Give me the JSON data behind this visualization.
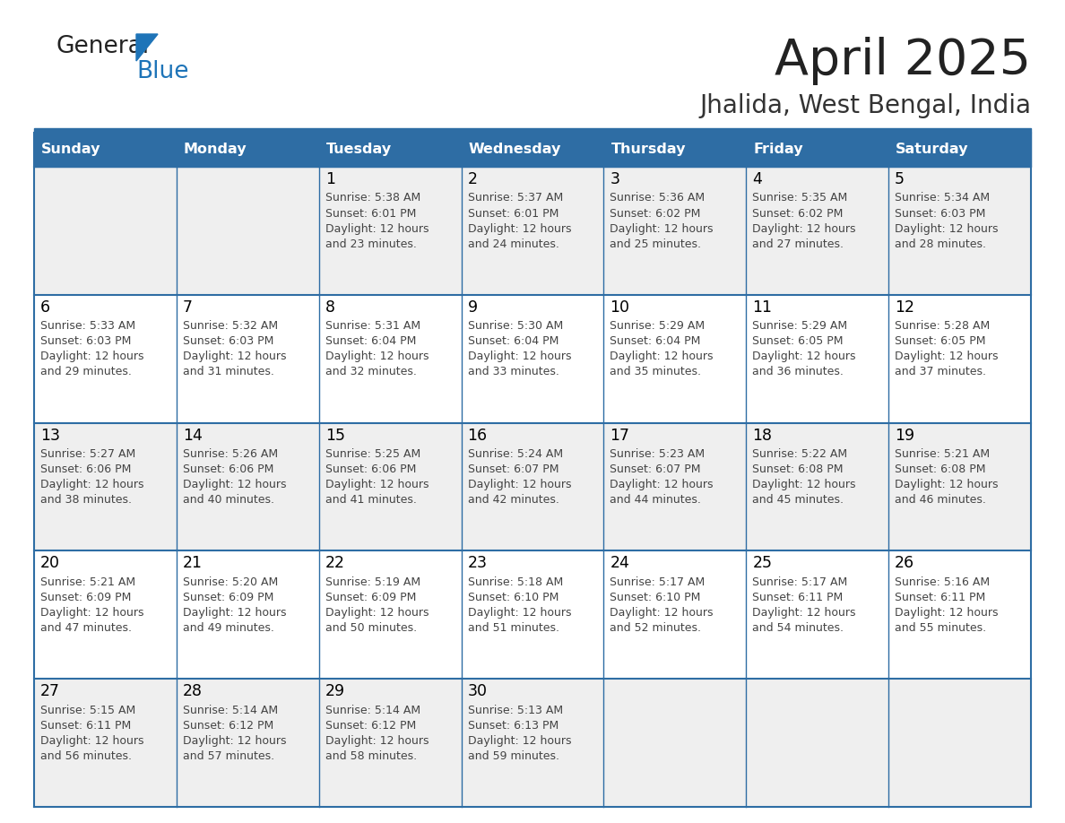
{
  "title": "April 2025",
  "subtitle": "Jhalida, West Bengal, India",
  "header_bg": "#2E6DA4",
  "header_text": "#FFFFFF",
  "row_bg_odd": "#EFEFEF",
  "row_bg_even": "#FFFFFF",
  "day_headers": [
    "Sunday",
    "Monday",
    "Tuesday",
    "Wednesday",
    "Thursday",
    "Friday",
    "Saturday"
  ],
  "title_color": "#222222",
  "subtitle_color": "#333333",
  "day_num_color": "#000000",
  "detail_color": "#444444",
  "logo_text_color": "#222222",
  "logo_blue_color": "#1E74B8",
  "separator_color": "#2E6DA4",
  "calendar": [
    [
      {
        "day": "",
        "sunrise": "",
        "sunset": "",
        "minutes": ""
      },
      {
        "day": "",
        "sunrise": "",
        "sunset": "",
        "minutes": ""
      },
      {
        "day": "1",
        "sunrise": "5:38 AM",
        "sunset": "6:01 PM",
        "minutes": "23"
      },
      {
        "day": "2",
        "sunrise": "5:37 AM",
        "sunset": "6:01 PM",
        "minutes": "24"
      },
      {
        "day": "3",
        "sunrise": "5:36 AM",
        "sunset": "6:02 PM",
        "minutes": "25"
      },
      {
        "day": "4",
        "sunrise": "5:35 AM",
        "sunset": "6:02 PM",
        "minutes": "27"
      },
      {
        "day": "5",
        "sunrise": "5:34 AM",
        "sunset": "6:03 PM",
        "minutes": "28"
      }
    ],
    [
      {
        "day": "6",
        "sunrise": "5:33 AM",
        "sunset": "6:03 PM",
        "minutes": "29"
      },
      {
        "day": "7",
        "sunrise": "5:32 AM",
        "sunset": "6:03 PM",
        "minutes": "31"
      },
      {
        "day": "8",
        "sunrise": "5:31 AM",
        "sunset": "6:04 PM",
        "minutes": "32"
      },
      {
        "day": "9",
        "sunrise": "5:30 AM",
        "sunset": "6:04 PM",
        "minutes": "33"
      },
      {
        "day": "10",
        "sunrise": "5:29 AM",
        "sunset": "6:04 PM",
        "minutes": "35"
      },
      {
        "day": "11",
        "sunrise": "5:29 AM",
        "sunset": "6:05 PM",
        "minutes": "36"
      },
      {
        "day": "12",
        "sunrise": "5:28 AM",
        "sunset": "6:05 PM",
        "minutes": "37"
      }
    ],
    [
      {
        "day": "13",
        "sunrise": "5:27 AM",
        "sunset": "6:06 PM",
        "minutes": "38"
      },
      {
        "day": "14",
        "sunrise": "5:26 AM",
        "sunset": "6:06 PM",
        "minutes": "40"
      },
      {
        "day": "15",
        "sunrise": "5:25 AM",
        "sunset": "6:06 PM",
        "minutes": "41"
      },
      {
        "day": "16",
        "sunrise": "5:24 AM",
        "sunset": "6:07 PM",
        "minutes": "42"
      },
      {
        "day": "17",
        "sunrise": "5:23 AM",
        "sunset": "6:07 PM",
        "minutes": "44"
      },
      {
        "day": "18",
        "sunrise": "5:22 AM",
        "sunset": "6:08 PM",
        "minutes": "45"
      },
      {
        "day": "19",
        "sunrise": "5:21 AM",
        "sunset": "6:08 PM",
        "minutes": "46"
      }
    ],
    [
      {
        "day": "20",
        "sunrise": "5:21 AM",
        "sunset": "6:09 PM",
        "minutes": "47"
      },
      {
        "day": "21",
        "sunrise": "5:20 AM",
        "sunset": "6:09 PM",
        "minutes": "49"
      },
      {
        "day": "22",
        "sunrise": "5:19 AM",
        "sunset": "6:09 PM",
        "minutes": "50"
      },
      {
        "day": "23",
        "sunrise": "5:18 AM",
        "sunset": "6:10 PM",
        "minutes": "51"
      },
      {
        "day": "24",
        "sunrise": "5:17 AM",
        "sunset": "6:10 PM",
        "minutes": "52"
      },
      {
        "day": "25",
        "sunrise": "5:17 AM",
        "sunset": "6:11 PM",
        "minutes": "54"
      },
      {
        "day": "26",
        "sunrise": "5:16 AM",
        "sunset": "6:11 PM",
        "minutes": "55"
      }
    ],
    [
      {
        "day": "27",
        "sunrise": "5:15 AM",
        "sunset": "6:11 PM",
        "minutes": "56"
      },
      {
        "day": "28",
        "sunrise": "5:14 AM",
        "sunset": "6:12 PM",
        "minutes": "57"
      },
      {
        "day": "29",
        "sunrise": "5:14 AM",
        "sunset": "6:12 PM",
        "minutes": "58"
      },
      {
        "day": "30",
        "sunrise": "5:13 AM",
        "sunset": "6:13 PM",
        "minutes": "59"
      },
      {
        "day": "",
        "sunrise": "",
        "sunset": "",
        "minutes": ""
      },
      {
        "day": "",
        "sunrise": "",
        "sunset": "",
        "minutes": ""
      },
      {
        "day": "",
        "sunrise": "",
        "sunset": "",
        "minutes": ""
      }
    ]
  ]
}
